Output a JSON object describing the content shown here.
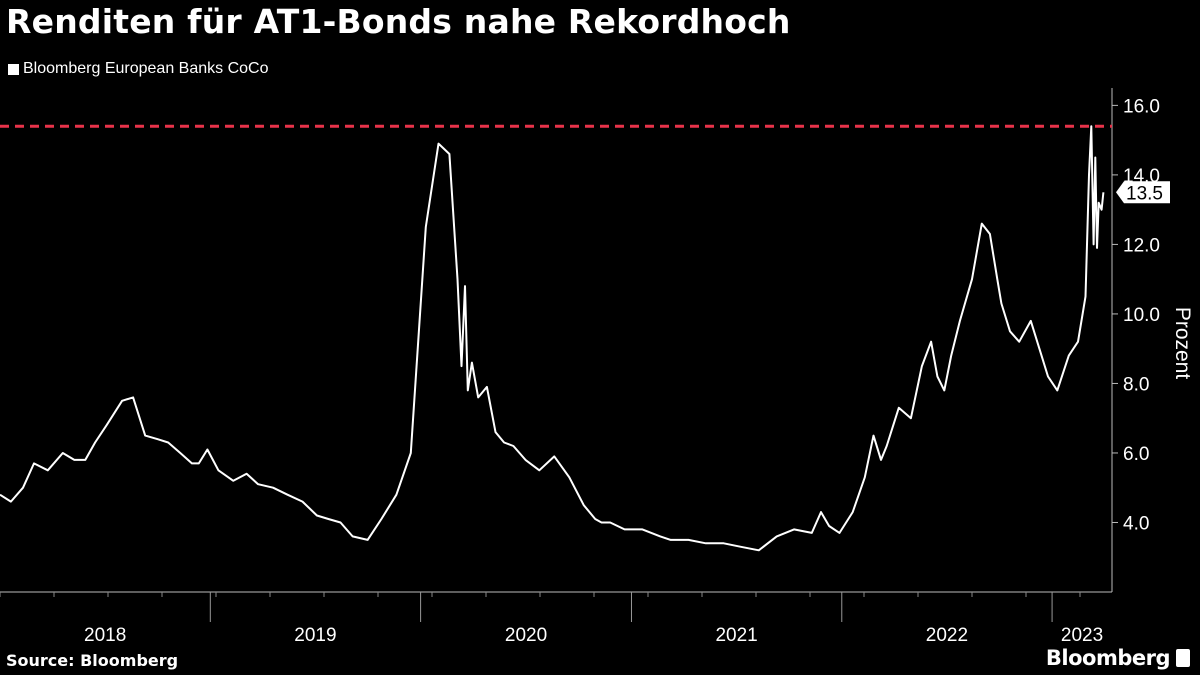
{
  "header": {
    "title": "Renditen für AT1-Bonds nahe Rekordhoch"
  },
  "footer": {
    "source": "Source: Bloomberg",
    "brand": "Bloomberg"
  },
  "colors": {
    "background": "#000000",
    "line": "#ffffff",
    "record_line": "#e8334a"
  },
  "chart_data": {
    "type": "line",
    "title": "Renditen für AT1-Bonds nahe Rekordhoch",
    "ylabel": "Prozent",
    "ylim": [
      2.0,
      16.5
    ],
    "y_ticks": [
      "4.0",
      "6.0",
      "8.0",
      "10.0",
      "12.0",
      "14.0",
      "16.0"
    ],
    "x_tick_labels": [
      "2018",
      "2019",
      "2020",
      "2021",
      "2022",
      "2023"
    ],
    "xlim": [
      "2018-01-01",
      "2023-04-15"
    ],
    "grid": false,
    "legend_position": "top-left",
    "last_value_label": "13.5",
    "reference_line": {
      "value": 15.4,
      "style": "dashed",
      "color": "#e8334a"
    },
    "series": [
      {
        "name": "Bloomberg European Banks CoCo",
        "x": [
          "2018-01-01",
          "2018-01-20",
          "2018-02-10",
          "2018-03-01",
          "2018-03-25",
          "2018-04-20",
          "2018-05-10",
          "2018-05-29",
          "2018-06-15",
          "2018-07-05",
          "2018-08-01",
          "2018-08-20",
          "2018-09-10",
          "2018-10-01",
          "2018-10-20",
          "2018-11-10",
          "2018-11-30",
          "2018-12-12",
          "2018-12-27",
          "2019-01-15",
          "2019-02-10",
          "2019-03-05",
          "2019-03-25",
          "2019-04-20",
          "2019-05-15",
          "2019-06-10",
          "2019-07-05",
          "2019-07-25",
          "2019-08-15",
          "2019-09-05",
          "2019-10-01",
          "2019-10-25",
          "2019-11-20",
          "2019-12-15",
          "2020-01-10",
          "2020-02-01",
          "2020-02-20",
          "2020-03-05",
          "2020-03-12",
          "2020-03-18",
          "2020-03-23",
          "2020-03-30",
          "2020-04-10",
          "2020-04-25",
          "2020-05-10",
          "2020-05-25",
          "2020-06-10",
          "2020-07-01",
          "2020-07-25",
          "2020-08-20",
          "2020-09-15",
          "2020-10-10",
          "2020-10-30",
          "2020-11-10",
          "2020-11-25",
          "2020-12-20",
          "2021-01-20",
          "2021-02-20",
          "2021-03-10",
          "2021-04-10",
          "2021-05-10",
          "2021-06-10",
          "2021-07-10",
          "2021-08-10",
          "2021-09-10",
          "2021-10-10",
          "2021-11-10",
          "2021-11-26",
          "2021-12-10",
          "2021-12-28",
          "2022-01-20",
          "2022-02-10",
          "2022-02-25",
          "2022-03-10",
          "2022-03-20",
          "2022-04-10",
          "2022-05-01",
          "2022-05-20",
          "2022-06-05",
          "2022-06-16",
          "2022-06-28",
          "2022-07-10",
          "2022-07-25",
          "2022-08-15",
          "2022-09-01",
          "2022-09-15",
          "2022-09-28",
          "2022-10-05",
          "2022-10-20",
          "2022-11-05",
          "2022-11-25",
          "2022-12-10",
          "2022-12-25",
          "2023-01-10",
          "2023-01-30",
          "2023-02-15",
          "2023-02-28",
          "2023-03-06",
          "2023-03-10",
          "2023-03-14",
          "2023-03-17",
          "2023-03-20",
          "2023-03-23",
          "2023-03-28",
          "2023-03-31"
        ],
        "values": [
          4.8,
          4.6,
          5.0,
          5.7,
          5.5,
          6.0,
          5.8,
          5.8,
          6.3,
          6.8,
          7.5,
          7.6,
          6.5,
          6.4,
          6.3,
          6.0,
          5.7,
          5.7,
          6.1,
          5.5,
          5.2,
          5.4,
          5.1,
          5.0,
          4.8,
          4.6,
          4.2,
          4.1,
          4.0,
          3.6,
          3.5,
          4.1,
          4.8,
          6.0,
          12.5,
          14.9,
          14.6,
          11.0,
          8.5,
          10.8,
          7.8,
          8.6,
          7.6,
          7.9,
          6.6,
          6.3,
          6.2,
          5.8,
          5.5,
          5.9,
          5.3,
          4.5,
          4.1,
          4.0,
          4.0,
          3.8,
          3.8,
          3.6,
          3.5,
          3.5,
          3.4,
          3.4,
          3.3,
          3.2,
          3.6,
          3.8,
          3.7,
          4.3,
          3.9,
          3.7,
          4.3,
          5.3,
          6.5,
          5.8,
          6.2,
          7.3,
          7.0,
          8.5,
          9.2,
          8.2,
          7.8,
          8.8,
          9.8,
          11.0,
          12.6,
          12.3,
          11.0,
          10.3,
          9.5,
          9.2,
          9.8,
          9.0,
          8.2,
          7.8,
          8.8,
          9.2,
          10.5,
          14.0,
          15.4,
          12.0,
          14.5,
          11.9,
          13.2,
          13.0,
          13.5
        ]
      }
    ]
  }
}
